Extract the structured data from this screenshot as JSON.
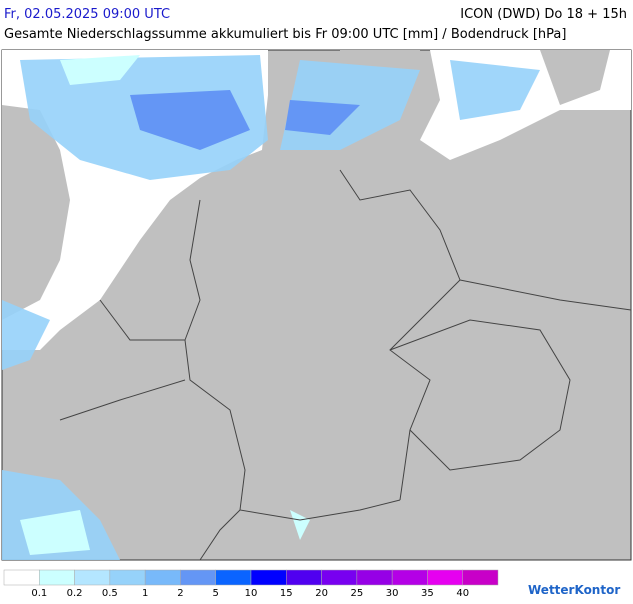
{
  "header": {
    "valid_time": "Fr, 02.05.2025 09:00 UTC",
    "model": "ICON (DWD) Do 18 + 15h",
    "subtitle": "Gesamte Niederschlagssumme akkumuliert bis Fr 09:00 UTC [mm] / Bodendruck [hPa]"
  },
  "legend": {
    "colors": [
      "#ffffff",
      "#ccffff",
      "#b4e6ff",
      "#96d2fa",
      "#78b9fa",
      "#6496f5",
      "#0a64ff",
      "#0000ff",
      "#5000f0",
      "#7800f0",
      "#9600e6",
      "#b400e6",
      "#e600f0",
      "#c800c8"
    ],
    "labels": [
      0.1,
      0.2,
      0.5,
      1,
      2,
      5,
      10,
      15,
      20,
      25,
      30,
      35,
      40
    ]
  },
  "logo": "WetterKontor"
}
